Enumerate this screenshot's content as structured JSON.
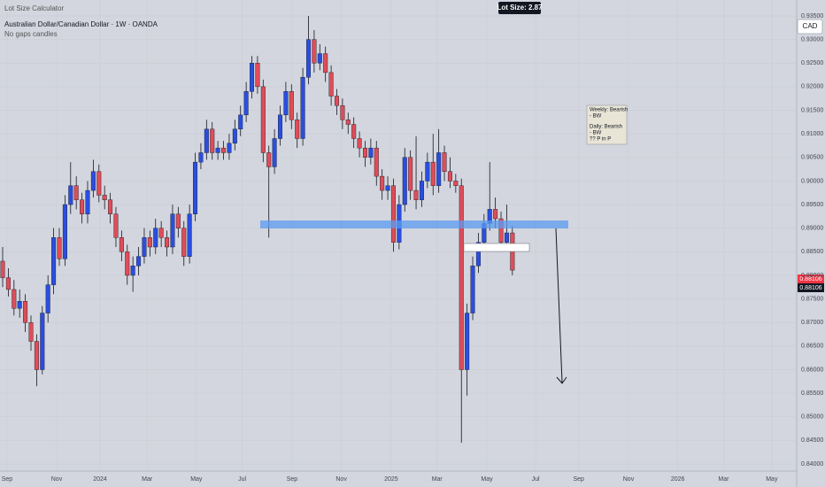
{
  "chart_data": {
    "type": "candlestick",
    "tool": "Lot Size Calculator",
    "title": "Australian Dollar/Canadian Dollar · 1W · OANDA",
    "subtitle": "No gaps candles",
    "lot_size": "Lot Size: 2.87",
    "currency": "CAD",
    "note": [
      "Weekly: Bearish",
      "- BW",
      "Daily: Bearish",
      "- BW",
      "?? P in P"
    ],
    "price_labels": [
      "0.88106",
      "0.88106"
    ],
    "up_color": "#2b4ee0",
    "down_color": "#e04c59",
    "xlim": [
      -0.47,
      140.2
    ],
    "xticks": [
      {
        "value": 0.78,
        "label": "Sep"
      },
      {
        "value": 9.53,
        "label": "Nov"
      },
      {
        "value": 17.2,
        "label": "2024"
      },
      {
        "value": 25.5,
        "label": "Mar"
      },
      {
        "value": 34.2,
        "label": "May"
      },
      {
        "value": 42.3,
        "label": "Jul"
      },
      {
        "value": 51.1,
        "label": "Sep"
      },
      {
        "value": 59.8,
        "label": "Nov"
      },
      {
        "value": 68.6,
        "label": "2025"
      },
      {
        "value": 76.7,
        "label": "Mar"
      },
      {
        "value": 85.5,
        "label": "May"
      },
      {
        "value": 94.1,
        "label": "Jul"
      },
      {
        "value": 101.7,
        "label": "Sep"
      },
      {
        "value": 110.5,
        "label": "Nov"
      },
      {
        "value": 119.2,
        "label": "2026"
      },
      {
        "value": 127.3,
        "label": "Mar"
      },
      {
        "value": 135.8,
        "label": "May"
      }
    ],
    "ylim": [
      0.8385,
      0.9365
    ],
    "yticks": [
      {
        "value": 0.84,
        "label": "0.84000"
      },
      {
        "value": 0.845,
        "label": "0.84500"
      },
      {
        "value": 0.85,
        "label": "0.85000"
      },
      {
        "value": 0.855,
        "label": "0.85500"
      },
      {
        "value": 0.86,
        "label": "0.86000"
      },
      {
        "value": 0.865,
        "label": "0.86500"
      },
      {
        "value": 0.87,
        "label": "0.87000"
      },
      {
        "value": 0.875,
        "label": "0.87500"
      },
      {
        "value": 0.88,
        "label": "0.88000"
      },
      {
        "value": 0.885,
        "label": "0.88500"
      },
      {
        "value": 0.89,
        "label": "0.89000"
      },
      {
        "value": 0.895,
        "label": "0.89500"
      },
      {
        "value": 0.9,
        "label": "0.90000"
      },
      {
        "value": 0.905,
        "label": "0.90500"
      },
      {
        "value": 0.91,
        "label": "0.91000"
      },
      {
        "value": 0.915,
        "label": "0.91500"
      },
      {
        "value": 0.92,
        "label": "0.92000"
      },
      {
        "value": 0.925,
        "label": "0.92500"
      },
      {
        "value": 0.93,
        "label": "0.93000"
      },
      {
        "value": 0.935,
        "label": "0.93500"
      }
    ],
    "ohlc": [
      [
        0.883,
        0.886,
        0.8775,
        0.8795
      ],
      [
        0.8795,
        0.8815,
        0.8755,
        0.877
      ],
      [
        0.877,
        0.879,
        0.8715,
        0.873
      ],
      [
        0.873,
        0.877,
        0.871,
        0.8745
      ],
      [
        0.8745,
        0.876,
        0.868,
        0.87
      ],
      [
        0.87,
        0.8715,
        0.864,
        0.866
      ],
      [
        0.866,
        0.8675,
        0.8565,
        0.86
      ],
      [
        0.86,
        0.8735,
        0.859,
        0.872
      ],
      [
        0.872,
        0.88,
        0.87,
        0.878
      ],
      [
        0.878,
        0.89,
        0.876,
        0.888
      ],
      [
        0.888,
        0.89,
        0.882,
        0.8835
      ],
      [
        0.8835,
        0.897,
        0.882,
        0.895
      ],
      [
        0.895,
        0.904,
        0.893,
        0.899
      ],
      [
        0.899,
        0.901,
        0.894,
        0.896
      ],
      [
        0.896,
        0.8975,
        0.891,
        0.893
      ],
      [
        0.893,
        0.9,
        0.891,
        0.898
      ],
      [
        0.898,
        0.9045,
        0.8965,
        0.902
      ],
      [
        0.902,
        0.9035,
        0.8955,
        0.897
      ],
      [
        0.897,
        0.899,
        0.894,
        0.896
      ],
      [
        0.896,
        0.8975,
        0.891,
        0.893
      ],
      [
        0.893,
        0.8945,
        0.886,
        0.888
      ],
      [
        0.888,
        0.8895,
        0.883,
        0.885
      ],
      [
        0.885,
        0.8865,
        0.878,
        0.88
      ],
      [
        0.88,
        0.884,
        0.8765,
        0.882
      ],
      [
        0.882,
        0.886,
        0.88,
        0.884
      ],
      [
        0.884,
        0.89,
        0.8825,
        0.888
      ],
      [
        0.888,
        0.8895,
        0.884,
        0.886
      ],
      [
        0.886,
        0.892,
        0.8845,
        0.89
      ],
      [
        0.89,
        0.8915,
        0.886,
        0.888
      ],
      [
        0.888,
        0.8895,
        0.884,
        0.886
      ],
      [
        0.886,
        0.895,
        0.8845,
        0.893
      ],
      [
        0.893,
        0.8945,
        0.888,
        0.89
      ],
      [
        0.89,
        0.8915,
        0.882,
        0.884
      ],
      [
        0.884,
        0.895,
        0.8825,
        0.893
      ],
      [
        0.893,
        0.906,
        0.8915,
        0.904
      ],
      [
        0.904,
        0.908,
        0.9025,
        0.906
      ],
      [
        0.906,
        0.913,
        0.9045,
        0.911
      ],
      [
        0.911,
        0.9125,
        0.9045,
        0.906
      ],
      [
        0.906,
        0.9085,
        0.9045,
        0.907
      ],
      [
        0.907,
        0.9085,
        0.9045,
        0.906
      ],
      [
        0.906,
        0.91,
        0.9045,
        0.908
      ],
      [
        0.908,
        0.913,
        0.9065,
        0.911
      ],
      [
        0.911,
        0.916,
        0.9095,
        0.914
      ],
      [
        0.914,
        0.921,
        0.9125,
        0.919
      ],
      [
        0.919,
        0.9265,
        0.9175,
        0.925
      ],
      [
        0.925,
        0.9265,
        0.9185,
        0.92
      ],
      [
        0.92,
        0.9215,
        0.904,
        0.906
      ],
      [
        0.906,
        0.9075,
        0.888,
        0.903
      ],
      [
        0.903,
        0.911,
        0.9015,
        0.909
      ],
      [
        0.909,
        0.916,
        0.9075,
        0.914
      ],
      [
        0.914,
        0.921,
        0.9125,
        0.919
      ],
      [
        0.919,
        0.9205,
        0.911,
        0.913
      ],
      [
        0.913,
        0.9145,
        0.907,
        0.909
      ],
      [
        0.909,
        0.924,
        0.9075,
        0.922
      ],
      [
        0.922,
        0.935,
        0.9205,
        0.93
      ],
      [
        0.93,
        0.932,
        0.923,
        0.925
      ],
      [
        0.925,
        0.929,
        0.9235,
        0.927
      ],
      [
        0.927,
        0.9285,
        0.921,
        0.923
      ],
      [
        0.923,
        0.9245,
        0.916,
        0.918
      ],
      [
        0.918,
        0.9195,
        0.914,
        0.916
      ],
      [
        0.916,
        0.9175,
        0.911,
        0.913
      ],
      [
        0.913,
        0.9145,
        0.91,
        0.912
      ],
      [
        0.912,
        0.9135,
        0.907,
        0.909
      ],
      [
        0.909,
        0.9105,
        0.905,
        0.907
      ],
      [
        0.907,
        0.9085,
        0.903,
        0.905
      ],
      [
        0.905,
        0.909,
        0.9035,
        0.907
      ],
      [
        0.907,
        0.9085,
        0.899,
        0.901
      ],
      [
        0.901,
        0.9025,
        0.896,
        0.898
      ],
      [
        0.898,
        0.901,
        0.896,
        0.899
      ],
      [
        0.899,
        0.9005,
        0.885,
        0.887
      ],
      [
        0.887,
        0.897,
        0.8855,
        0.895
      ],
      [
        0.895,
        0.907,
        0.8935,
        0.905
      ],
      [
        0.905,
        0.9065,
        0.896,
        0.898
      ],
      [
        0.898,
        0.9095,
        0.894,
        0.896
      ],
      [
        0.896,
        0.902,
        0.8945,
        0.9
      ],
      [
        0.9,
        0.906,
        0.8985,
        0.904
      ],
      [
        0.904,
        0.91,
        0.897,
        0.899
      ],
      [
        0.899,
        0.911,
        0.8975,
        0.906
      ],
      [
        0.906,
        0.9075,
        0.9,
        0.902
      ],
      [
        0.902,
        0.905,
        0.8985,
        0.9
      ],
      [
        0.9,
        0.9015,
        0.8975,
        0.899
      ],
      [
        0.899,
        0.9005,
        0.8445,
        0.86
      ],
      [
        0.86,
        0.874,
        0.8545,
        0.872
      ],
      [
        0.872,
        0.884,
        0.8705,
        0.882
      ],
      [
        0.882,
        0.889,
        0.8805,
        0.887
      ],
      [
        0.887,
        0.893,
        0.8855,
        0.891
      ],
      [
        0.891,
        0.904,
        0.8895,
        0.894
      ],
      [
        0.894,
        0.8965,
        0.89,
        0.892
      ],
      [
        0.892,
        0.8935,
        0.885,
        0.887
      ],
      [
        0.887,
        0.895,
        0.8855,
        0.889
      ],
      [
        0.889,
        0.8905,
        0.88,
        0.8811
      ]
    ]
  }
}
